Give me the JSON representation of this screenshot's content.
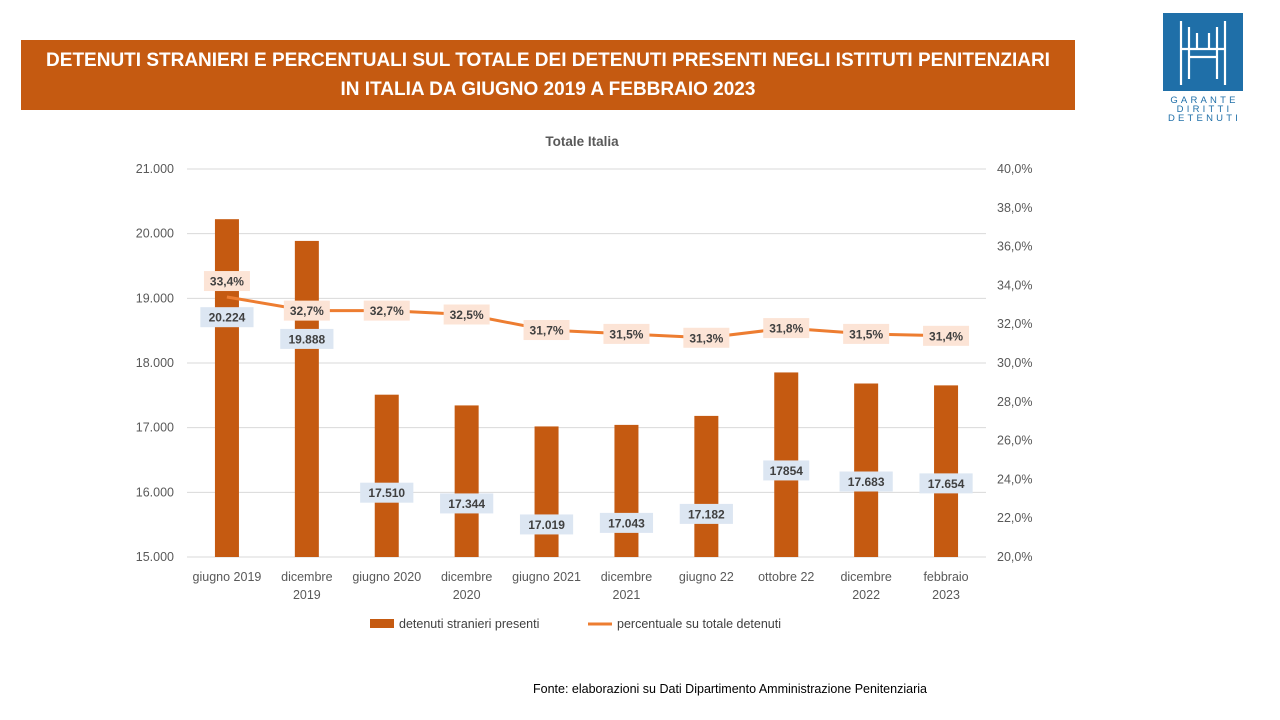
{
  "header": {
    "title_line1": "DETENUTI STRANIERI E PERCENTUALI SUL TOTALE DEI DETENUTI PRESENTI NEGLI ISTITUTI PENITENZIARI",
    "title_line2": "IN ITALIA DA GIUGNO 2019 A FEBBRAIO 2023"
  },
  "logo": {
    "line1": "GARANTE",
    "line2": "DIRITTI",
    "line3": "DETENUTI"
  },
  "footer": {
    "source": "Fonte: elaborazioni su Dati Dipartimento  Amministrazione  Penitenziaria"
  },
  "colors": {
    "bar": "#C55A11",
    "line": "#ED7D31",
    "bar_label_bg": "#DCE6F2",
    "line_label_bg": "#FCE4D6",
    "grid": "#D9D9D9"
  },
  "chart_data": {
    "type": "bar",
    "title": "Totale Italia",
    "categories": [
      [
        "giugno 2019"
      ],
      [
        "dicembre",
        "2019"
      ],
      [
        "giugno 2020"
      ],
      [
        "dicembre",
        "2020"
      ],
      [
        "giugno 2021"
      ],
      [
        "dicembre",
        "2021"
      ],
      [
        "giugno 22"
      ],
      [
        "ottobre 22"
      ],
      [
        "dicembre",
        "2022"
      ],
      [
        "febbraio",
        "2023"
      ]
    ],
    "series": [
      {
        "name": "detenuti stranieri presenti",
        "type": "bar",
        "axis": "left",
        "values": [
          20224,
          19888,
          17510,
          17344,
          17019,
          17043,
          17182,
          17854,
          17683,
          17654
        ],
        "labels": [
          "20.224",
          "19.888",
          "17.510",
          "17.344",
          "17.019",
          "17.043",
          "17.182",
          "17854",
          "17.683",
          "17.654"
        ]
      },
      {
        "name": "percentuale su totale detenuti",
        "type": "line",
        "axis": "right",
        "values": [
          33.4,
          32.7,
          32.7,
          32.5,
          31.7,
          31.5,
          31.3,
          31.8,
          31.5,
          31.4
        ],
        "labels": [
          "33,4%",
          "32,7%",
          "32,7%",
          "32,5%",
          "31,7%",
          "31,5%",
          "31,3%",
          "31,8%",
          "31,5%",
          "31,4%"
        ]
      }
    ],
    "y_left": {
      "range": [
        15000,
        21000
      ],
      "ticks": [
        15000,
        16000,
        17000,
        18000,
        19000,
        20000,
        21000
      ],
      "tick_labels": [
        "15.000",
        "16.000",
        "17.000",
        "18.000",
        "19.000",
        "20.000",
        "21.000"
      ]
    },
    "y_right": {
      "range": [
        20,
        40
      ],
      "ticks": [
        20,
        22,
        24,
        26,
        28,
        30,
        32,
        34,
        36,
        38,
        40
      ],
      "tick_labels": [
        "20,0%",
        "22,0%",
        "24,0%",
        "26,0%",
        "28,0%",
        "30,0%",
        "32,0%",
        "34,0%",
        "36,0%",
        "38,0%",
        "40,0%"
      ]
    },
    "grid": true,
    "legend": "bottom"
  }
}
